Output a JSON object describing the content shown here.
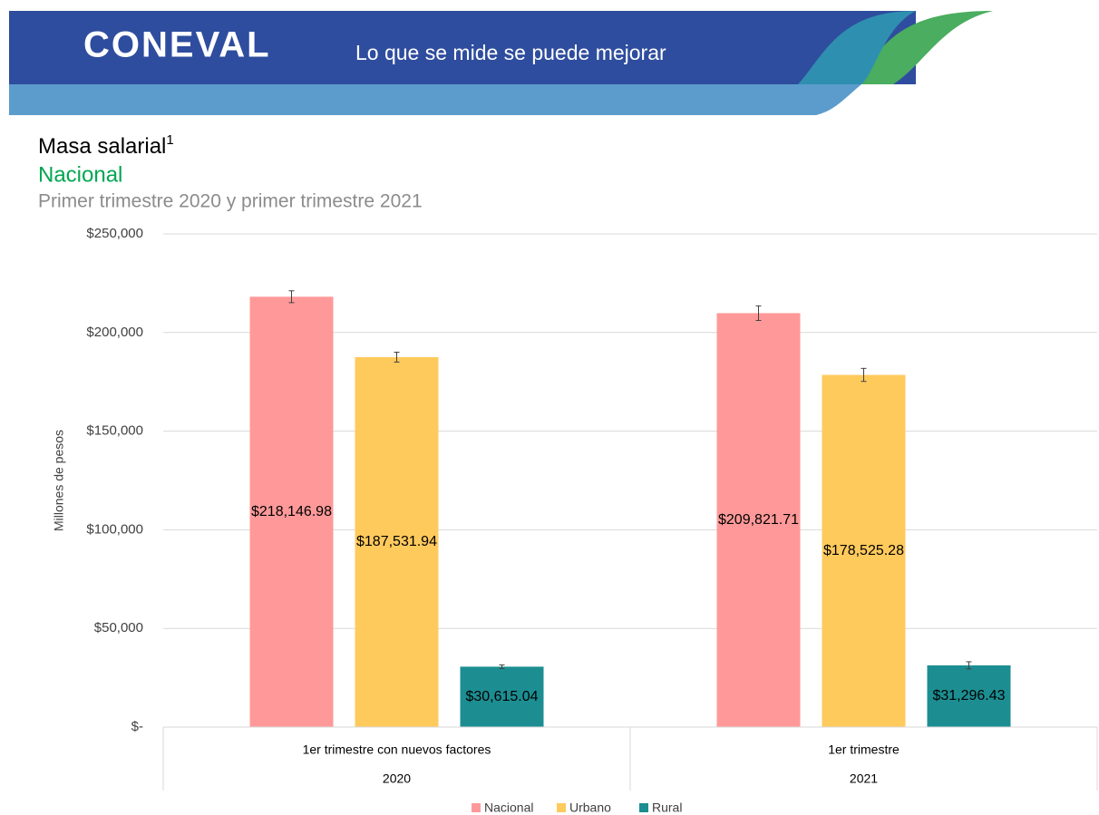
{
  "header": {
    "logo": "CONEVAL",
    "slogan": "Lo que se mide se puede mejorar"
  },
  "chart_data": {
    "type": "bar",
    "title": "Masa salarial",
    "title_note": "1",
    "subtitle": "Nacional",
    "subtitle2": "Primer trimestre 2020 y primer trimestre 2021",
    "y_label": "Millones de pesos",
    "categories": [
      "1er trimestre con nuevos factores",
      "1er trimestre"
    ],
    "category_groups": [
      "2020",
      "2021"
    ],
    "series": [
      {
        "name": "Nacional",
        "color": "#ff9999",
        "values": [
          218146.98,
          209821.71
        ],
        "value_labels": [
          "$218,146.98",
          "$209,821.71"
        ],
        "errors": [
          3000,
          3700
        ]
      },
      {
        "name": "Urbano",
        "color": "#ffca5c",
        "values": [
          187531.94,
          178525.28
        ],
        "value_labels": [
          "$187,531.94",
          "$178,525.28"
        ],
        "errors": [
          2500,
          3300
        ]
      },
      {
        "name": "Rural",
        "color": "#1c8e92",
        "values": [
          30615.04,
          31296.43
        ],
        "value_labels": [
          "$30,615.04",
          "$31,296.43"
        ],
        "errors": [
          900,
          1800
        ]
      }
    ],
    "ylim": [
      0,
      250000
    ],
    "yticks": [
      {
        "value": 0,
        "label": "$-"
      },
      {
        "value": 50000,
        "label": "$50,000"
      },
      {
        "value": 100000,
        "label": "$100,000"
      },
      {
        "value": 150000,
        "label": "$150,000"
      },
      {
        "value": 200000,
        "label": "$200,000"
      },
      {
        "value": 250000,
        "label": "$250,000"
      }
    ],
    "grid": true,
    "legend": "bottom"
  }
}
